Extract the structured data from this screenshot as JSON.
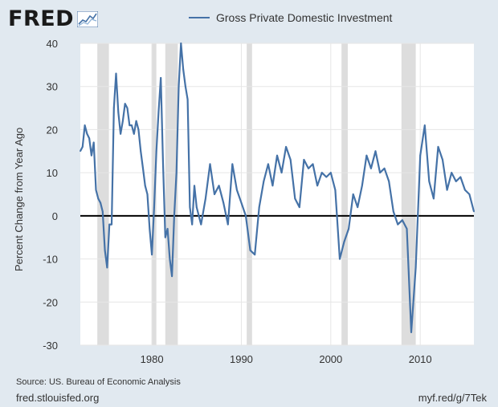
{
  "header": {
    "logo_text": "FRED",
    "logo_mark_icon": "fred-chart-logo-icon"
  },
  "footer": {
    "source": "Source: US. Bureau of Economic Analysis",
    "site": "fred.stlouisfed.org",
    "short_url": "myf.red/g/7Tek"
  },
  "colors": {
    "line": "#4572a7",
    "recession": "#dddddd",
    "plot_bg": "#ffffff",
    "page_bg": "#e1e9f0"
  },
  "chart_data": {
    "type": "line",
    "title": "",
    "xlabel": "",
    "ylabel": "Percent Change from Year Ago",
    "xlim": [
      1972.0,
      2016.0
    ],
    "ylim": [
      -30,
      40
    ],
    "y_ticks": [
      -30,
      -20,
      -10,
      0,
      10,
      20,
      30,
      40
    ],
    "x_ticks": [
      1980,
      1990,
      2000,
      2010
    ],
    "grid": true,
    "legend_position": "top",
    "zero_line": true,
    "recessions": [
      [
        1973.9,
        1975.2
      ],
      [
        1980.0,
        1980.5
      ],
      [
        1981.5,
        1982.9
      ],
      [
        1990.6,
        1991.2
      ],
      [
        2001.2,
        2001.9
      ],
      [
        2007.9,
        2009.5
      ]
    ],
    "series": [
      {
        "name": "Gross Private Domestic Investment",
        "x": [
          1972.0,
          1972.25,
          1972.5,
          1972.75,
          1973.0,
          1973.25,
          1973.5,
          1973.75,
          1974.0,
          1974.25,
          1974.5,
          1974.75,
          1975.0,
          1975.25,
          1975.5,
          1975.75,
          1976.0,
          1976.25,
          1976.5,
          1976.75,
          1977.0,
          1977.25,
          1977.5,
          1977.75,
          1978.0,
          1978.25,
          1978.5,
          1978.75,
          1979.0,
          1979.25,
          1979.5,
          1979.75,
          1980.0,
          1980.25,
          1980.5,
          1980.75,
          1981.0,
          1981.25,
          1981.5,
          1981.75,
          1982.0,
          1982.25,
          1982.5,
          1982.75,
          1983.0,
          1983.25,
          1983.5,
          1983.75,
          1984.0,
          1984.25,
          1984.5,
          1984.75,
          1985.0,
          1985.5,
          1986.0,
          1986.5,
          1987.0,
          1987.5,
          1988.0,
          1988.5,
          1989.0,
          1989.5,
          1990.0,
          1990.5,
          1991.0,
          1991.5,
          1992.0,
          1992.5,
          1993.0,
          1993.5,
          1994.0,
          1994.5,
          1995.0,
          1995.5,
          1996.0,
          1996.5,
          1997.0,
          1997.5,
          1998.0,
          1998.5,
          1999.0,
          1999.5,
          2000.0,
          2000.5,
          2001.0,
          2001.5,
          2002.0,
          2002.5,
          2003.0,
          2003.5,
          2004.0,
          2004.5,
          2005.0,
          2005.5,
          2006.0,
          2006.5,
          2007.0,
          2007.5,
          2008.0,
          2008.5,
          2009.0,
          2009.5,
          2010.0,
          2010.5,
          2011.0,
          2011.5,
          2012.0,
          2012.5,
          2013.0,
          2013.5,
          2014.0,
          2014.5,
          2015.0,
          2015.5,
          2016.0
        ],
        "values": [
          15,
          16,
          21,
          19,
          18,
          14,
          17,
          6,
          4,
          3,
          1,
          -8,
          -12,
          -2,
          -2,
          25,
          33,
          24,
          19,
          22,
          26,
          25,
          21,
          21,
          19,
          22,
          20,
          15,
          11,
          7,
          5,
          -3,
          -9,
          2,
          15,
          24,
          32,
          12,
          -5,
          -3,
          -10,
          -14,
          0,
          10,
          30,
          40,
          34,
          30,
          27,
          2,
          -2,
          7,
          2,
          -2,
          4,
          12,
          5,
          7,
          3,
          -2,
          12,
          6,
          3,
          0,
          -8,
          -9,
          2,
          8,
          12,
          7,
          14,
          10,
          16,
          13,
          4,
          2,
          13,
          11,
          12,
          7,
          10,
          9,
          10,
          6,
          -10,
          -6,
          -3,
          5,
          2,
          7,
          14,
          11,
          15,
          10,
          11,
          8,
          1,
          -2,
          -1,
          -3,
          -27,
          -12,
          14,
          21,
          8,
          4,
          16,
          13,
          6,
          10,
          8,
          9,
          6,
          5,
          1
        ]
      }
    ]
  }
}
